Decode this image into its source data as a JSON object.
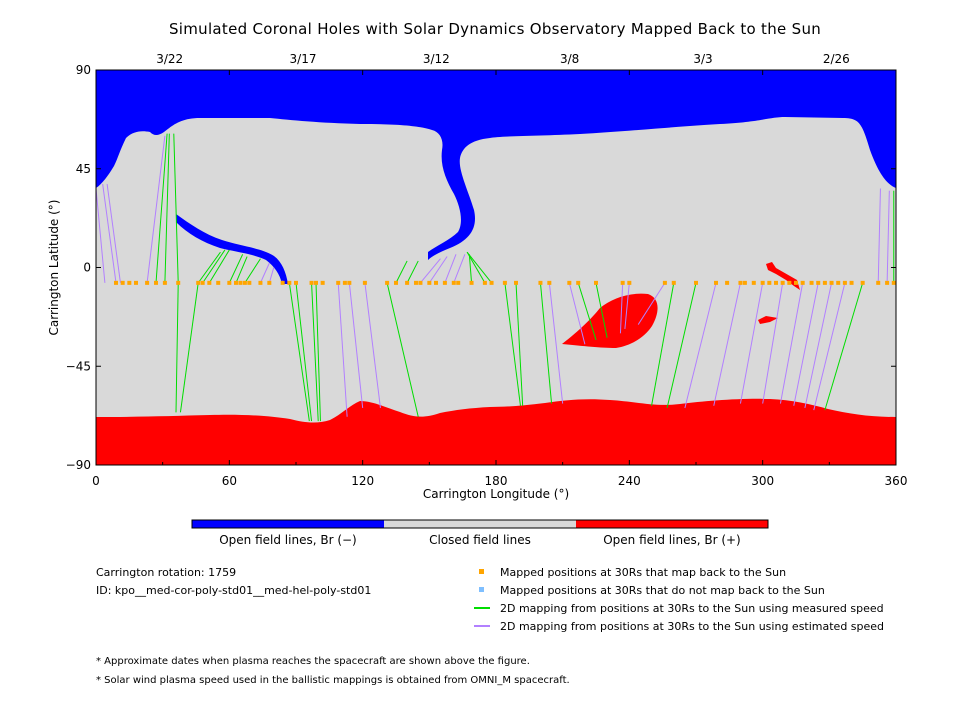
{
  "title": "Simulated Coronal Holes with Solar Dynamics Observatory Mapped Back to the Sun",
  "colors": {
    "open_negative": "#0000ff",
    "closed": "#d9d9d9",
    "open_positive": "#ff0000",
    "mapped_ok": "#ffa500",
    "mapped_not": "#7fbfff",
    "measured_speed": "#00dd00",
    "estimated_speed": "#b280ff"
  },
  "chart_data": {
    "type": "map",
    "xlabel": "Carrington Longitude (°)",
    "ylabel": "Carrington Latitude (°)",
    "xlim": [
      0,
      360
    ],
    "ylim": [
      -90,
      90
    ],
    "x_ticks": [
      "0",
      "60",
      "120",
      "180",
      "240",
      "300",
      "360"
    ],
    "y_ticks": [
      "90",
      "45",
      "0",
      "−45",
      "−90"
    ],
    "top_dates": [
      {
        "label": "3/22",
        "lon": 30
      },
      {
        "label": "3/17",
        "lon": 90
      },
      {
        "label": "3/12",
        "lon": 150
      },
      {
        "label": "3/8",
        "lon": 210
      },
      {
        "label": "3/3",
        "lon": 270
      },
      {
        "label": "2/26",
        "lon": 330
      }
    ],
    "mapped_latitude": -7,
    "mapped_lons": [
      9,
      12,
      15,
      18,
      23,
      27,
      31,
      37,
      46,
      48,
      51,
      55,
      60,
      63,
      65,
      67,
      69,
      74,
      78,
      84,
      87,
      90,
      97,
      99,
      102,
      109,
      112,
      114,
      121,
      131,
      135,
      140,
      144,
      146,
      150,
      153,
      157,
      161,
      163,
      169,
      175,
      178,
      184,
      189,
      200,
      204,
      213,
      217,
      225,
      237,
      240,
      256,
      260,
      270,
      279,
      284,
      290,
      292,
      296,
      300,
      303,
      306,
      309,
      312,
      315,
      318,
      322,
      325,
      328,
      331,
      334,
      337,
      340,
      345,
      352,
      356,
      359
    ],
    "field_lines": [
      {
        "from": [
          4,
          -7
        ],
        "to": [
          0,
          36
        ],
        "speed": "estimated"
      },
      {
        "from": [
          9,
          -7
        ],
        "to": [
          3,
          38
        ],
        "speed": "estimated"
      },
      {
        "from": [
          11,
          -7
        ],
        "to": [
          5,
          38
        ],
        "speed": "estimated"
      },
      {
        "from": [
          23,
          -7
        ],
        "to": [
          31,
          60
        ],
        "speed": "estimated"
      },
      {
        "from": [
          27,
          -7
        ],
        "to": [
          32,
          61
        ],
        "speed": "measured"
      },
      {
        "from": [
          31,
          -7
        ],
        "to": [
          33,
          61
        ],
        "speed": "measured"
      },
      {
        "from": [
          37,
          -7
        ],
        "to": [
          35,
          61
        ],
        "speed": "measured"
      },
      {
        "from": [
          46,
          -7
        ],
        "to": [
          56,
          7
        ],
        "speed": "measured"
      },
      {
        "from": [
          48,
          -7
        ],
        "to": [
          58,
          8
        ],
        "speed": "measured"
      },
      {
        "from": [
          51,
          -7
        ],
        "to": [
          60,
          8
        ],
        "speed": "measured"
      },
      {
        "from": [
          60,
          -7
        ],
        "to": [
          66,
          6
        ],
        "speed": "measured"
      },
      {
        "from": [
          63,
          -7
        ],
        "to": [
          68,
          5
        ],
        "speed": "measured"
      },
      {
        "from": [
          67,
          -7
        ],
        "to": [
          74,
          4
        ],
        "speed": "measured"
      },
      {
        "from": [
          74,
          -7
        ],
        "to": [
          78,
          2
        ],
        "speed": "estimated"
      },
      {
        "from": [
          78,
          -7
        ],
        "to": [
          80,
          0
        ],
        "speed": "estimated"
      },
      {
        "from": [
          84,
          -7
        ],
        "to": [
          84,
          -6
        ],
        "speed": "estimated"
      },
      {
        "from": [
          37,
          -7
        ],
        "to": [
          36,
          -66
        ],
        "speed": "measured"
      },
      {
        "from": [
          46,
          -7
        ],
        "to": [
          38,
          -66
        ],
        "speed": "measured"
      },
      {
        "from": [
          87,
          -7
        ],
        "to": [
          96,
          -70
        ],
        "speed": "measured"
      },
      {
        "from": [
          90,
          -7
        ],
        "to": [
          97,
          -70
        ],
        "speed": "measured"
      },
      {
        "from": [
          97,
          -7
        ],
        "to": [
          100,
          -70
        ],
        "speed": "measured"
      },
      {
        "from": [
          99,
          -7
        ],
        "to": [
          101,
          -70
        ],
        "speed": "measured"
      },
      {
        "from": [
          109,
          -7
        ],
        "to": [
          113,
          -68
        ],
        "speed": "estimated"
      },
      {
        "from": [
          114,
          -7
        ],
        "to": [
          120,
          -64
        ],
        "speed": "estimated"
      },
      {
        "from": [
          121,
          -7
        ],
        "to": [
          128,
          -64
        ],
        "speed": "estimated"
      },
      {
        "from": [
          131,
          -7
        ],
        "to": [
          145,
          -68
        ],
        "speed": "measured"
      },
      {
        "from": [
          135,
          -7
        ],
        "to": [
          140,
          3
        ],
        "speed": "measured"
      },
      {
        "from": [
          140,
          -7
        ],
        "to": [
          145,
          3
        ],
        "speed": "measured"
      },
      {
        "from": [
          146,
          -7
        ],
        "to": [
          155,
          4
        ],
        "speed": "estimated"
      },
      {
        "from": [
          150,
          -7
        ],
        "to": [
          158,
          5
        ],
        "speed": "estimated"
      },
      {
        "from": [
          157,
          -7
        ],
        "to": [
          162,
          6
        ],
        "speed": "estimated"
      },
      {
        "from": [
          161,
          -7
        ],
        "to": [
          166,
          6
        ],
        "speed": "estimated"
      },
      {
        "from": [
          169,
          -7
        ],
        "to": [
          168,
          6
        ],
        "speed": "measured"
      },
      {
        "from": [
          175,
          -7
        ],
        "to": [
          167,
          7
        ],
        "speed": "measured"
      },
      {
        "from": [
          178,
          -7
        ],
        "to": [
          167,
          7
        ],
        "speed": "measured"
      },
      {
        "from": [
          184,
          -7
        ],
        "to": [
          191,
          -63
        ],
        "speed": "measured"
      },
      {
        "from": [
          189,
          -7
        ],
        "to": [
          192,
          -63
        ],
        "speed": "measured"
      },
      {
        "from": [
          200,
          -7
        ],
        "to": [
          205,
          -62
        ],
        "speed": "measured"
      },
      {
        "from": [
          204,
          -7
        ],
        "to": [
          210,
          -62
        ],
        "speed": "estimated"
      },
      {
        "from": [
          213,
          -7
        ],
        "to": [
          220,
          -35
        ],
        "speed": "estimated"
      },
      {
        "from": [
          217,
          -7
        ],
        "to": [
          225,
          -33
        ],
        "speed": "measured"
      },
      {
        "from": [
          225,
          -7
        ],
        "to": [
          230,
          -32
        ],
        "speed": "measured"
      },
      {
        "from": [
          237,
          -7
        ],
        "to": [
          236,
          -30
        ],
        "speed": "estimated"
      },
      {
        "from": [
          240,
          -7
        ],
        "to": [
          238,
          -28
        ],
        "speed": "estimated"
      },
      {
        "from": [
          256,
          -7
        ],
        "to": [
          244,
          -26
        ],
        "speed": "estimated"
      },
      {
        "from": [
          260,
          -7
        ],
        "to": [
          250,
          -63
        ],
        "speed": "measured"
      },
      {
        "from": [
          270,
          -7
        ],
        "to": [
          257,
          -64
        ],
        "speed": "measured"
      },
      {
        "from": [
          279,
          -7
        ],
        "to": [
          265,
          -64
        ],
        "speed": "estimated"
      },
      {
        "from": [
          290,
          -7
        ],
        "to": [
          278,
          -63
        ],
        "speed": "estimated"
      },
      {
        "from": [
          300,
          -7
        ],
        "to": [
          290,
          -62
        ],
        "speed": "estimated"
      },
      {
        "from": [
          309,
          -7
        ],
        "to": [
          300,
          -62
        ],
        "speed": "estimated"
      },
      {
        "from": [
          318,
          -7
        ],
        "to": [
          308,
          -62
        ],
        "speed": "estimated"
      },
      {
        "from": [
          325,
          -7
        ],
        "to": [
          314,
          -63
        ],
        "speed": "estimated"
      },
      {
        "from": [
          331,
          -7
        ],
        "to": [
          319,
          -64
        ],
        "speed": "estimated"
      },
      {
        "from": [
          337,
          -7
        ],
        "to": [
          323,
          -65
        ],
        "speed": "estimated"
      },
      {
        "from": [
          345,
          -7
        ],
        "to": [
          328,
          -65
        ],
        "speed": "measured"
      },
      {
        "from": [
          352,
          -7
        ],
        "to": [
          353,
          36
        ],
        "speed": "estimated"
      },
      {
        "from": [
          356,
          -7
        ],
        "to": [
          357,
          35
        ],
        "speed": "estimated"
      },
      {
        "from": [
          359,
          -7
        ],
        "to": [
          359,
          35
        ],
        "speed": "measured"
      }
    ]
  },
  "colorbar": {
    "labels": [
      "Open field lines, Br (−)",
      "Closed field lines",
      "Open field lines, Br (+)"
    ]
  },
  "info": {
    "rotation": "Carrington rotation: 1759",
    "id": "ID: kpo__med-cor-poly-std01__med-hel-poly-std01"
  },
  "legend": [
    {
      "text": "Mapped positions at 30Rs that map back to the Sun",
      "marker": "square",
      "color_key": "mapped_ok"
    },
    {
      "text": "Mapped positions at 30Rs that do not map back to the Sun",
      "marker": "square",
      "color_key": "mapped_not"
    },
    {
      "text": "2D mapping from positions at 30Rs to the Sun using measured speed",
      "marker": "line",
      "color_key": "measured_speed"
    },
    {
      "text": "2D mapping from positions at 30Rs to the Sun using estimated speed",
      "marker": "line",
      "color_key": "estimated_speed"
    }
  ],
  "notes": [
    "* Approximate dates when plasma reaches the spacecraft are shown above the figure.",
    "* Solar wind plasma speed used in the ballistic mappings is obtained from OMNI_M spacecraft."
  ]
}
